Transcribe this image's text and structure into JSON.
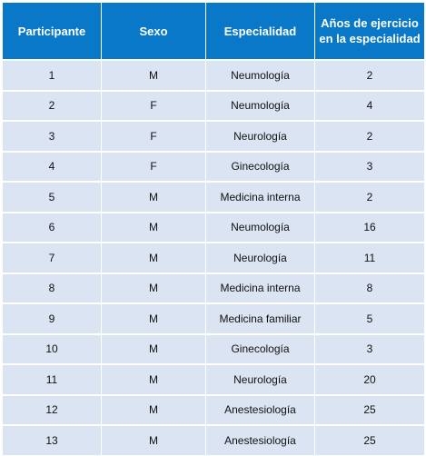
{
  "table": {
    "headers": [
      "Participante",
      "Sexo",
      "Especialidad",
      "Años de ejercicio en la especialidad"
    ],
    "rows": [
      [
        "1",
        "M",
        "Neumología",
        "2"
      ],
      [
        "2",
        "F",
        "Neumología",
        "4"
      ],
      [
        "3",
        "F",
        "Neurología",
        "2"
      ],
      [
        "4",
        "F",
        "Ginecología",
        "3"
      ],
      [
        "5",
        "M",
        "Medicina interna",
        "2"
      ],
      [
        "6",
        "M",
        "Neumología",
        "16"
      ],
      [
        "7",
        "M",
        "Neurología",
        "11"
      ],
      [
        "8",
        "M",
        "Medicina interna",
        "8"
      ],
      [
        "9",
        "M",
        "Medicina familiar",
        "5"
      ],
      [
        "10",
        "M",
        "Ginecología",
        "3"
      ],
      [
        "11",
        "M",
        "Neurología",
        "20"
      ],
      [
        "12",
        "M",
        "Anestesiología",
        "25"
      ],
      [
        "13",
        "M",
        "Anestesiología",
        "25"
      ]
    ]
  },
  "colors": {
    "header_background": "#0a78c8",
    "header_text": "#ffffff",
    "row_background": "#dae4f2",
    "cell_text": "#111111",
    "grid_lines": "#ffffff"
  }
}
